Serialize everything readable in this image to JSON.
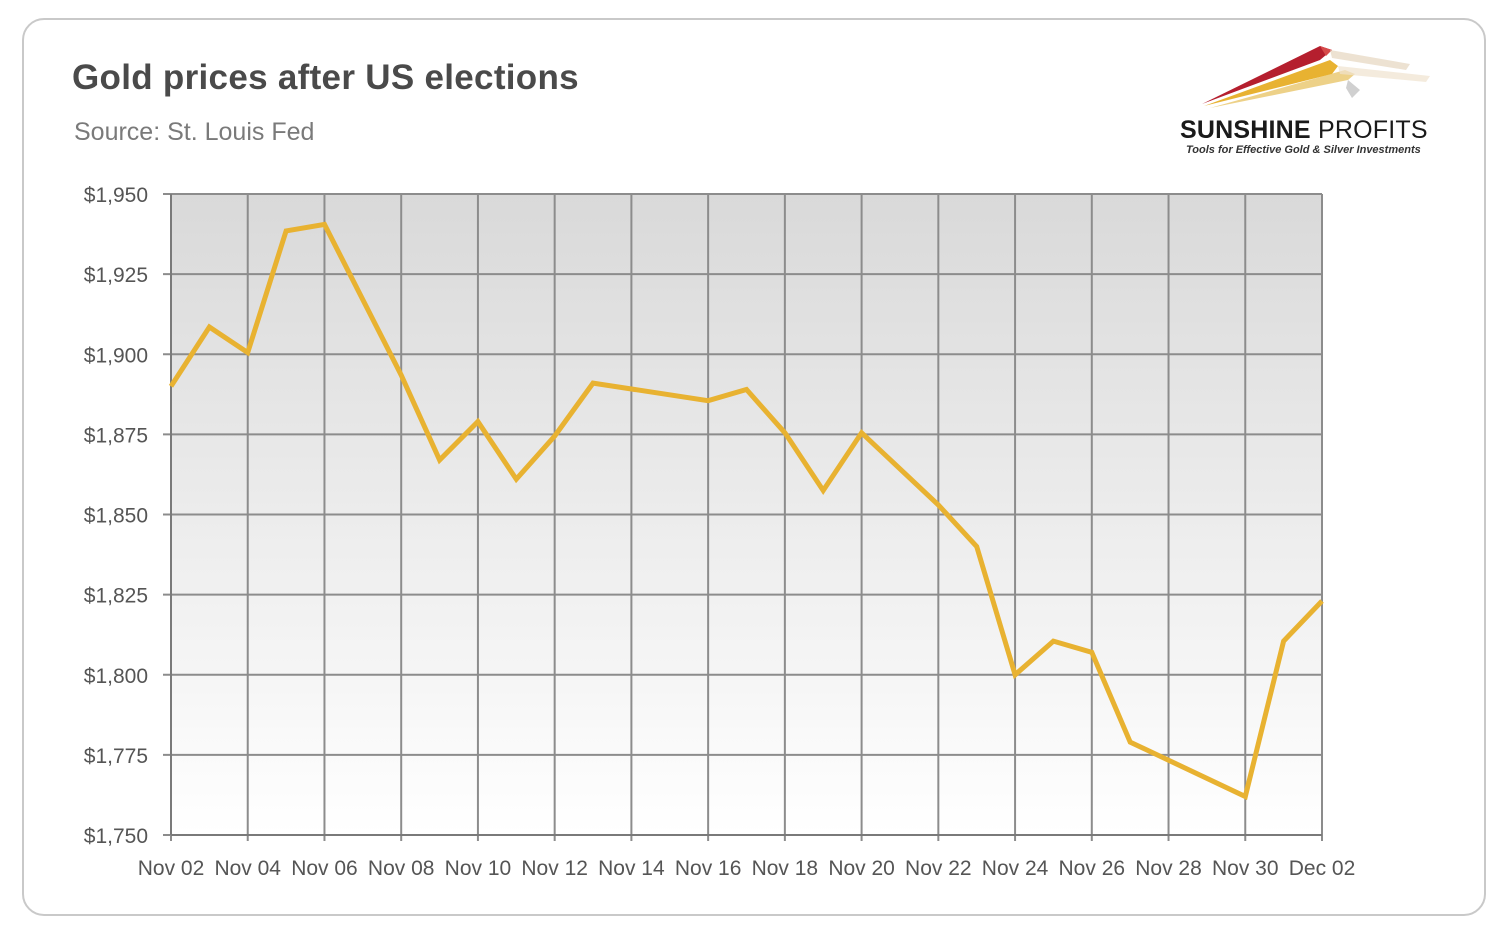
{
  "header": {
    "title": "Gold prices after US elections",
    "subtitle": "Source: St. Louis Fed"
  },
  "logo": {
    "name_bold": "SUNSHINE",
    "name_light": "PROFITS",
    "tagline": "Tools for Effective Gold & Silver Investments"
  },
  "colors": {
    "line": "#E8B231",
    "grid": "#8c8c8c",
    "plot_top": "#d9d9d9",
    "plot_bottom": "#ffffff"
  },
  "chart_data": {
    "type": "line",
    "title": "Gold prices after US elections",
    "subtitle": "Source: St. Louis Fed",
    "xlabel": "",
    "ylabel": "",
    "ylim": [
      1750,
      1950
    ],
    "ytick_step": 25,
    "yticks": [
      "$1,750",
      "$1,775",
      "$1,800",
      "$1,825",
      "$1,850",
      "$1,875",
      "$1,900",
      "$1,925",
      "$1,950"
    ],
    "xtick_labels": [
      "Nov 02",
      "Nov 04",
      "Nov 06",
      "Nov 08",
      "Nov 10",
      "Nov 12",
      "Nov 14",
      "Nov 16",
      "Nov 18",
      "Nov 20",
      "Nov 22",
      "Nov 24",
      "Nov 26",
      "Nov 28",
      "Nov 30",
      "Dec 02"
    ],
    "grid": true,
    "legend": "none",
    "series": [
      {
        "x": [
          "Nov 02",
          "Nov 03",
          "Nov 04",
          "Nov 05",
          "Nov 06",
          "Nov 08",
          "Nov 09",
          "Nov 10",
          "Nov 11",
          "Nov 12",
          "Nov 13",
          "Nov 16",
          "Nov 17",
          "Nov 18",
          "Nov 19",
          "Nov 20",
          "Nov 22",
          "Nov 23",
          "Nov 24",
          "Nov 25",
          "Nov 26",
          "Nov 27",
          "Nov 30",
          "Dec 01",
          "Dec 02"
        ],
        "values": [
          1890,
          1908.5,
          1900.5,
          1938.5,
          1940.5,
          1893.5,
          1867,
          1879,
          1861,
          1874.5,
          1891,
          1885.5,
          1889,
          1875.5,
          1857.5,
          1875.5,
          1853,
          1840,
          1800,
          1810.5,
          1807,
          1779,
          1762,
          1810.5,
          1823
        ]
      }
    ]
  }
}
